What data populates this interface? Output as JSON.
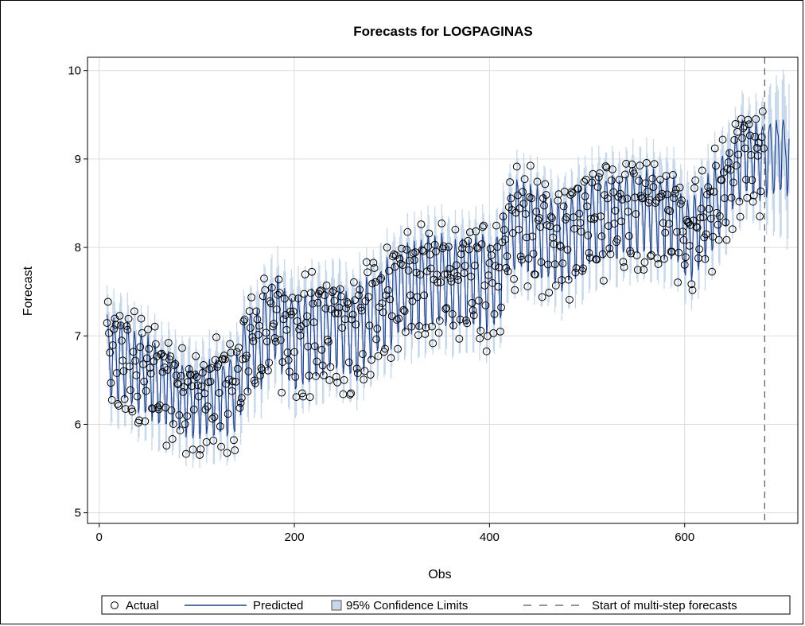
{
  "chart_data": {
    "type": "line",
    "title": "Forecasts for LOGPAGINAS",
    "xlabel": "Obs",
    "ylabel": "Forecast",
    "xlim": [
      -12,
      716
    ],
    "ylim": [
      4.88,
      10.15
    ],
    "xticks": [
      0,
      200,
      400,
      600
    ],
    "yticks": [
      5,
      6,
      7,
      8,
      9,
      10
    ],
    "grid": true,
    "legend_position": "bottom",
    "legend": [
      {
        "name": "Actual",
        "marker": "circle"
      },
      {
        "name": "Predicted",
        "marker": "line"
      },
      {
        "name": "95% Confidence Limits",
        "marker": "band"
      },
      {
        "name": "Start of multi-step forecasts",
        "marker": "dashed-line"
      }
    ],
    "forecast_start": 682,
    "x_end": 707,
    "level_profile": {
      "x": [
        8,
        20,
        40,
        60,
        80,
        100,
        120,
        140,
        150,
        165,
        180,
        200,
        220,
        240,
        260,
        280,
        300,
        320,
        340,
        360,
        380,
        400,
        412,
        418,
        430,
        450,
        470,
        490,
        520,
        560,
        590,
        605,
        620,
        640,
        660,
        682,
        707
      ],
      "y": [
        6.75,
        6.72,
        6.6,
        6.45,
        6.35,
        6.25,
        6.3,
        6.35,
        6.8,
        6.9,
        7.2,
        6.95,
        7.0,
        7.1,
        7.0,
        7.2,
        7.4,
        7.55,
        7.6,
        7.6,
        7.65,
        7.6,
        7.7,
        8.15,
        8.25,
        8.2,
        8.0,
        8.2,
        8.35,
        8.4,
        8.35,
        8.05,
        8.3,
        8.65,
        9.0,
        9.0,
        9.05
      ]
    },
    "weekly_amplitude_profile": {
      "x": [
        8,
        100,
        140,
        200,
        300,
        400,
        420,
        520,
        600,
        640,
        707
      ],
      "y": [
        0.55,
        0.45,
        0.5,
        0.6,
        0.55,
        0.6,
        0.55,
        0.55,
        0.5,
        0.5,
        0.5
      ]
    },
    "confidence_halfwidth_in_sample": 0.33,
    "confidence_halfwidth_forecast": [
      0.4,
      0.62
    ],
    "actual_range_observed": [
      1,
      681
    ],
    "colors": {
      "predicted": "#1f3f8a",
      "actual_marker": "#000000",
      "confidence_band": "#c6d7ea",
      "start_line": "#555555",
      "grid": "#dedede",
      "border": "#000000"
    }
  }
}
